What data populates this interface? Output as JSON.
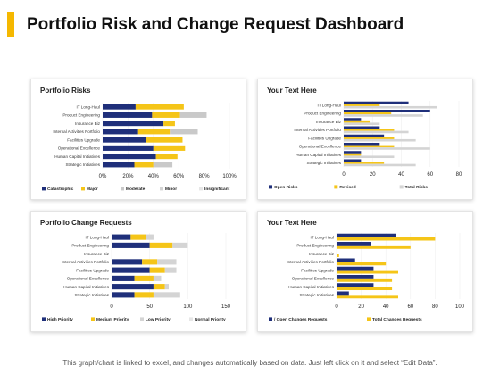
{
  "page": {
    "title": "Portfolio Risk and Change Request Dashboard",
    "footer": "This graph/chart is linked to excel, and changes automatically based on data. Just left click on it and select “Edit Data”.",
    "accent_color": "#f5b800"
  },
  "panels": [
    {
      "title": "Portfolio Risks"
    },
    {
      "title": "Your Text Here"
    },
    {
      "title": "Portfolio Change Requests"
    },
    {
      "title": "Your Text Here"
    }
  ],
  "chart_data": [
    {
      "type": "bar",
      "orientation": "horizontal",
      "stacked": true,
      "percent_axis": true,
      "title": "Portfolio Risks",
      "categories": [
        "IT Long-Haul",
        "Product Engineering",
        "Insurance Biz",
        "Internal Activities Portfolio",
        "Facilities Upgrade",
        "Operational Excellence",
        "Human Capital Initiatives",
        "Strategic Initiatives"
      ],
      "xlim": [
        0,
        100
      ],
      "ticks": [
        "0%",
        "20%",
        "40%",
        "60%",
        "80%",
        "100%"
      ],
      "tick_values": [
        0,
        20,
        40,
        60,
        80,
        100
      ],
      "legend_position": "bottom",
      "series": [
        {
          "name": "Catastrophic",
          "color": "#1f2f7a",
          "values": [
            26,
            39,
            48,
            28,
            34,
            40,
            42,
            25
          ]
        },
        {
          "name": "Major",
          "color": "#f5c518",
          "values": [
            38,
            22,
            9,
            25,
            29,
            25,
            17,
            15
          ]
        },
        {
          "name": "Moderate",
          "color": "#c9c9c9",
          "values": [
            0,
            21,
            0,
            22,
            0,
            0,
            0,
            15
          ]
        },
        {
          "name": "Minor",
          "color": "#d4d4d4",
          "values": [
            0,
            0,
            0,
            0,
            0,
            0,
            0,
            0
          ]
        },
        {
          "name": "Insignificant",
          "color": "#e6e6e6",
          "values": [
            0,
            0,
            0,
            0,
            0,
            0,
            0,
            0
          ]
        }
      ]
    },
    {
      "type": "bar",
      "orientation": "horizontal",
      "stacked": false,
      "percent_axis": false,
      "title": "Your Text Here",
      "categories": [
        "IT Long-Haul",
        "Product Engineering",
        "Insurance Biz",
        "Internal Activities Portfolio",
        "Facilities Upgrade",
        "Operational Excellence",
        "Human Capital Initiatives",
        "Strategic Initiatives"
      ],
      "xlim": [
        0,
        80
      ],
      "ticks": [
        "0",
        "20",
        "40",
        "60",
        "80"
      ],
      "tick_values": [
        0,
        20,
        40,
        60,
        80
      ],
      "legend_position": "bottom",
      "series": [
        {
          "name": "Open Risks",
          "color": "#1f2f7a",
          "values": [
            45,
            60,
            12,
            25,
            28,
            25,
            12,
            12
          ]
        },
        {
          "name": "Revised",
          "color": "#f5c518",
          "values": [
            25,
            33,
            18,
            35,
            35,
            35,
            12,
            28
          ]
        },
        {
          "name": "Total Risks",
          "color": "#d4d4d4",
          "values": [
            65,
            55,
            25,
            45,
            50,
            60,
            35,
            50
          ]
        }
      ]
    },
    {
      "type": "bar",
      "orientation": "horizontal",
      "stacked": true,
      "percent_axis": false,
      "title": "Portfolio Change Requests",
      "categories": [
        "IT Long-Haul",
        "Product Engineering",
        "Insurance Biz",
        "Internal Activities Portfolio",
        "Facilities Upgrade",
        "Operational Excellence",
        "Human Capital Initiatives",
        "Strategic Initiatives"
      ],
      "xlim": [
        0,
        150
      ],
      "ticks": [
        "0",
        "50",
        "100",
        "150"
      ],
      "tick_values": [
        0,
        50,
        100,
        150
      ],
      "legend_position": "bottom",
      "series": [
        {
          "name": "High Priority",
          "color": "#1f2f7a",
          "values": [
            25,
            50,
            0,
            40,
            50,
            30,
            55,
            30
          ]
        },
        {
          "name": "Medium Priority",
          "color": "#f5c518",
          "values": [
            20,
            30,
            0,
            20,
            20,
            25,
            15,
            25
          ]
        },
        {
          "name": "Low Priority",
          "color": "#d4d4d4",
          "values": [
            10,
            20,
            0,
            25,
            15,
            10,
            5,
            35
          ]
        },
        {
          "name": "Normal Priority",
          "color": "#e6e6e6",
          "values": [
            0,
            0,
            0,
            0,
            0,
            0,
            0,
            0
          ]
        }
      ]
    },
    {
      "type": "bar",
      "orientation": "horizontal",
      "stacked": false,
      "percent_axis": false,
      "title": "Your Text Here",
      "categories": [
        "IT Long-Haul",
        "Product Engineering",
        "Insurance Biz",
        "Internal Activities Portfolio",
        "Facilities Upgrade",
        "Operational Excellence",
        "Human Capital Initiatives",
        "Strategic Initiatives"
      ],
      "xlim": [
        0,
        100
      ],
      "ticks": [
        "0",
        "20",
        "40",
        "60",
        "80",
        "100"
      ],
      "tick_values": [
        0,
        20,
        40,
        60,
        80,
        100
      ],
      "legend_position": "bottom",
      "series": [
        {
          "name": "/ Open Changes Requests",
          "color": "#1f2f7a",
          "values": [
            48,
            28,
            0,
            15,
            30,
            30,
            30,
            10
          ]
        },
        {
          "name": "Total Changes Requests",
          "color": "#f5c518",
          "values": [
            80,
            60,
            2,
            40,
            50,
            45,
            45,
            50
          ]
        }
      ]
    }
  ]
}
